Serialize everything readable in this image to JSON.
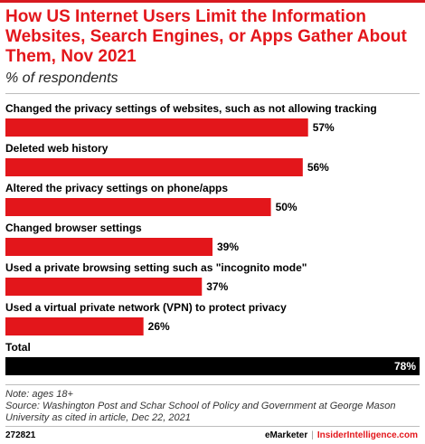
{
  "header": {
    "title": "How US Internet Users Limit the Information Websites, Search Engines, or Apps Gather About Them, Nov 2021",
    "subtitle": "% of respondents"
  },
  "chart_data": {
    "type": "bar",
    "orientation": "horizontal",
    "categories": [
      "Changed the privacy settings of websites, such as not allowing tracking",
      "Deleted web history",
      "Altered the privacy settings on phone/apps",
      "Changed browser settings",
      "Used a private browsing setting such as \"incognito mode\"",
      "Used a virtual private network (VPN) to protect privacy",
      "Total"
    ],
    "values": [
      57,
      56,
      50,
      39,
      37,
      26,
      78
    ],
    "value_labels": [
      "57%",
      "56%",
      "50%",
      "39%",
      "37%",
      "26%",
      "78%"
    ],
    "xlim": [
      0,
      78
    ],
    "colors": {
      "bar": "#e3161b",
      "total_bar": "#000000"
    },
    "grid": false,
    "legend": "none"
  },
  "footer": {
    "note_line1": "Note: ages 18+",
    "note_line2": "Source: Washington Post and Schar School of Policy and Government at George Mason University as cited in article, Dec 22, 2021",
    "chart_id": "272821",
    "brand_left": "eMarketer",
    "brand_sep": "|",
    "brand_right": "InsiderIntelligence.com"
  }
}
